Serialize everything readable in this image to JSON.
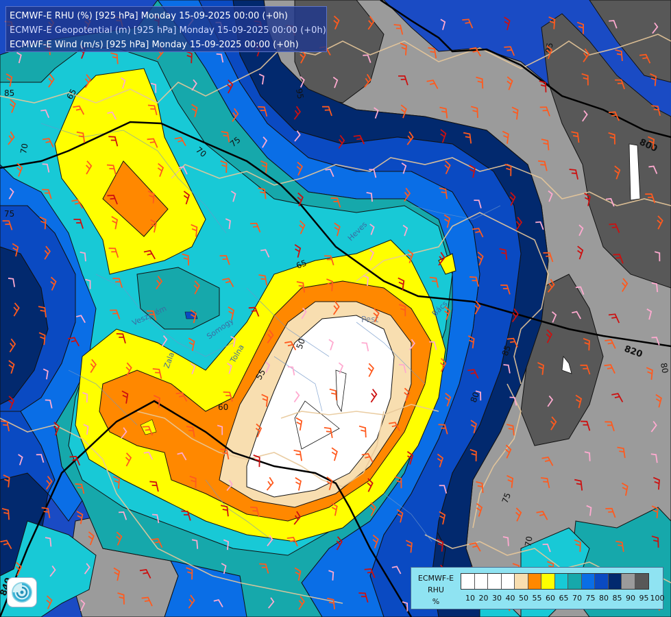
{
  "header": {
    "line1": "ECMWF-E RHU (%) [925 hPa] Monday 15-09-2025 00:00 (+0h)",
    "line2": "ECMWF-E Geopotential (m) [925 hPa] Monday 15-09-2025 00:00 (+0h)",
    "line3": "ECMWF-E Wind (m/s) [925 hPa] Monday 15-09-2025 00:00 (+0h)"
  },
  "legend": {
    "model": "ECMWF-E",
    "variable": "RHU",
    "unit": "%",
    "tick_labels": [
      "10",
      "20",
      "30",
      "40",
      "50",
      "55",
      "60",
      "65",
      "70",
      "75",
      "80",
      "85",
      "90",
      "95",
      "100"
    ],
    "colors": [
      "#ffffff",
      "#ffffff",
      "#ffffff",
      "#ffffff",
      "#f8deb0",
      "#ff8800",
      "#ffff00",
      "#18c9d6",
      "#16a8ab",
      "#0a6ee6",
      "#0a4ac2",
      "#02296e",
      "#9b9b9b",
      "#585858"
    ]
  },
  "map": {
    "contour_labels": [
      "65",
      "70",
      "75",
      "85",
      "95",
      "70",
      "75",
      "65",
      "60",
      "55",
      "50",
      "80",
      "85",
      "75",
      "70",
      "95",
      "80"
    ],
    "geopotential_labels": [
      "800",
      "820",
      "840"
    ],
    "place_labels": [
      "Pest",
      "Bács",
      "Heves",
      "Somogy",
      "Tolna",
      "Zala",
      "Veszprém"
    ]
  },
  "colors": {
    "title_bg": "#1e378c",
    "geopotential_line": "#000000",
    "borders": "#e8c89a",
    "wind_barb_low": "#ff5a1e",
    "wind_barb_mid": "#cc1010",
    "wind_barb_calm": "#ffaad0"
  },
  "icons": {
    "logo": "swirl-logo-icon"
  }
}
